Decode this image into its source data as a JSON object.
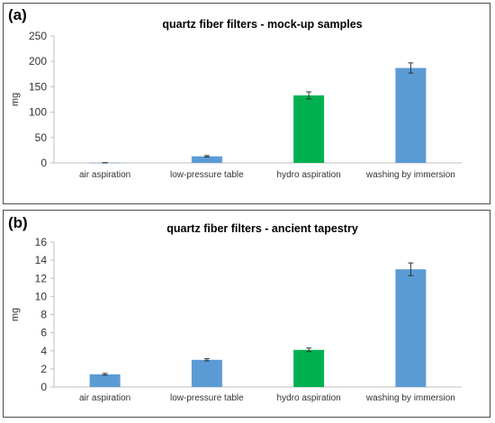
{
  "panels": [
    {
      "panel_label": "(a)"
    },
    {
      "panel_label": "(b)"
    }
  ],
  "chart_data": [
    {
      "type": "bar",
      "title": "quartz fiber filters - mock-up samples",
      "ylabel": "mg",
      "xlabel": "",
      "categories": [
        "air aspiration",
        "low-pressure table",
        "hydro aspiration",
        "washing by immersion"
      ],
      "values": [
        0.3,
        13,
        133,
        187
      ],
      "errors": [
        0.3,
        1.5,
        7,
        10
      ],
      "bar_colors": [
        "#5b9bd5",
        "#5b9bd5",
        "#00b050",
        "#5b9bd5"
      ],
      "ylim": [
        0,
        250
      ],
      "yticks": [
        0,
        50,
        100,
        150,
        200,
        250
      ],
      "grid": false,
      "legend": "none"
    },
    {
      "type": "bar",
      "title": "quartz fiber filters - ancient tapestry",
      "ylabel": "mg",
      "xlabel": "",
      "categories": [
        "air aspiration",
        "low-pressure table",
        "hydro aspiration",
        "washing by immersion"
      ],
      "values": [
        1.4,
        3.0,
        4.1,
        13.0
      ],
      "errors": [
        0.1,
        0.12,
        0.2,
        0.7
      ],
      "bar_colors": [
        "#5b9bd5",
        "#5b9bd5",
        "#00b050",
        "#5b9bd5"
      ],
      "ylim": [
        0,
        16
      ],
      "yticks": [
        0,
        2,
        4,
        6,
        8,
        10,
        12,
        14,
        16
      ],
      "grid": false,
      "legend": "none"
    }
  ]
}
